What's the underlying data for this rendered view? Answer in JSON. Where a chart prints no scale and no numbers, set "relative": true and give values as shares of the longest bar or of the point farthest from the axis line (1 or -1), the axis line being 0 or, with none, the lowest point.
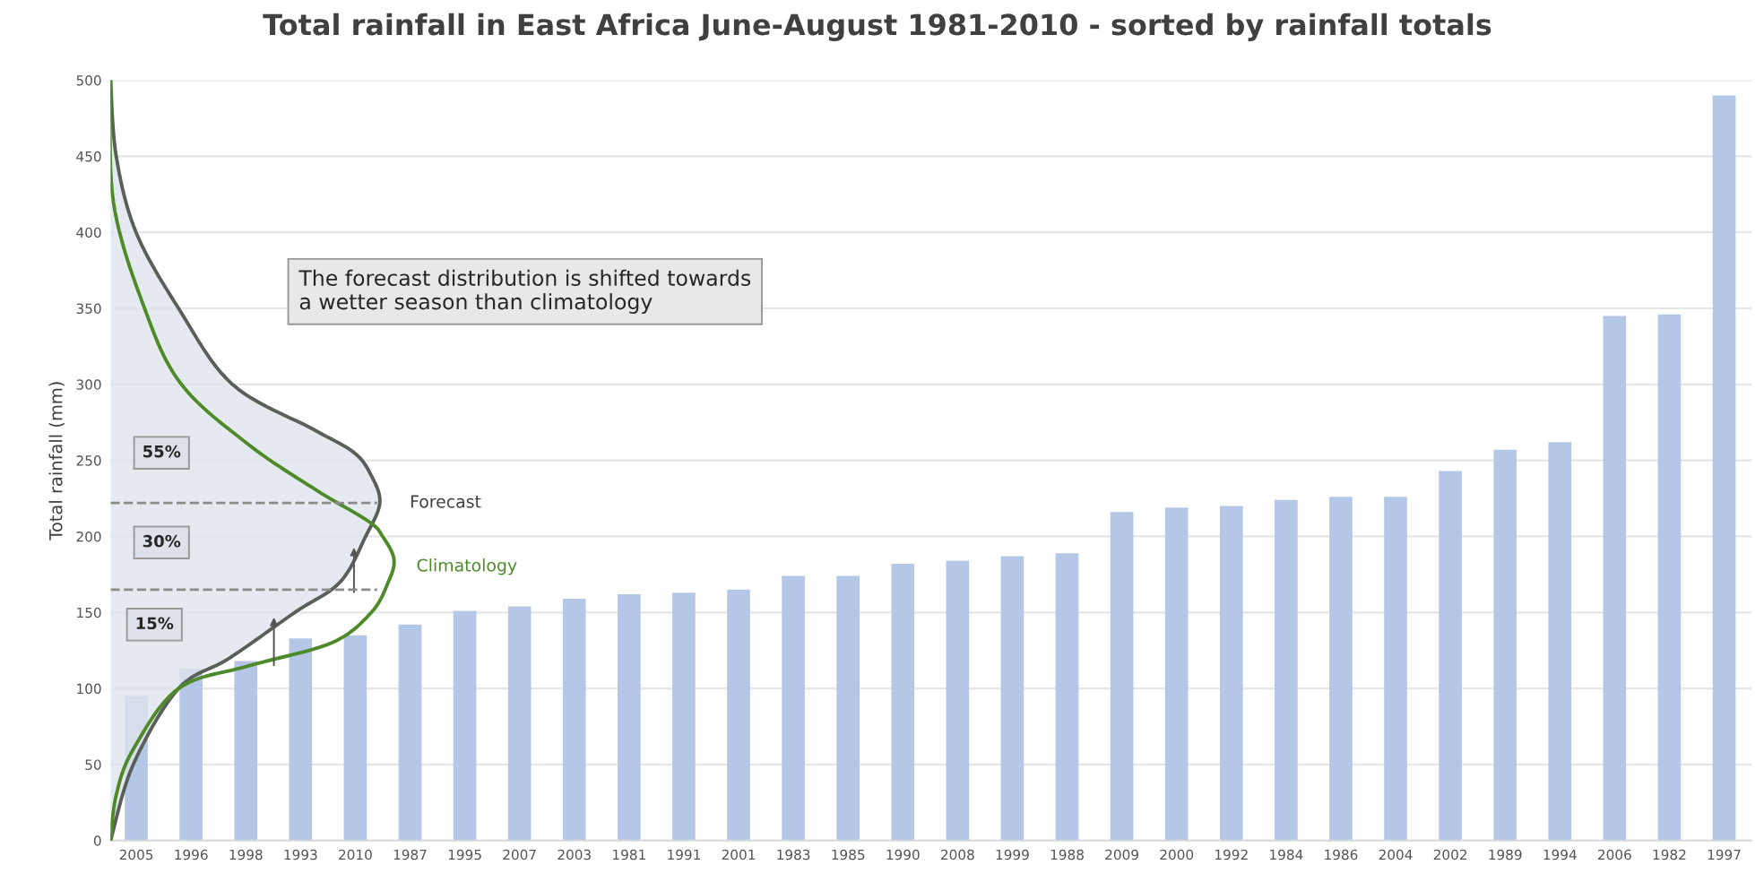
{
  "chart_data": [
    {
      "type": "bar",
      "title": "Total rainfall in East Africa June-August 1981-2010 - sorted by rainfall totals",
      "ylabel": "Total rainfall (mm)",
      "categories": [
        "2005",
        "1996",
        "1998",
        "1993",
        "2010",
        "1987",
        "1995",
        "2007",
        "2003",
        "1981",
        "1991",
        "2001",
        "1983",
        "1985",
        "1990",
        "2008",
        "1999",
        "1988",
        "2009",
        "2000",
        "1992",
        "1984",
        "1986",
        "2004",
        "2002",
        "1989",
        "1994",
        "2006",
        "1982",
        "1997"
      ],
      "values": [
        95,
        113,
        118,
        133,
        135,
        142,
        151,
        154,
        159,
        162,
        163,
        165,
        174,
        174,
        182,
        184,
        187,
        189,
        216,
        219,
        220,
        224,
        226,
        226,
        243,
        257,
        262,
        345,
        346,
        490
      ],
      "color": "#b4c7e7",
      "ylim": [
        0,
        500
      ],
      "yticks": [
        0,
        50,
        100,
        150,
        200,
        250,
        300,
        350,
        400,
        450,
        500
      ],
      "grid": "y",
      "ref_lines": [
        {
          "axis": "y",
          "value": 222,
          "color": "#8c8c8c",
          "line_style": "dashed"
        },
        {
          "axis": "y",
          "value": 165,
          "color": "#8c8c8c",
          "line_style": "dashed"
        }
      ],
      "annotations": [
        "The forecast distribution is shifted towards\na wetter season than climatology",
        "55%",
        "30%",
        "15%"
      ]
    },
    {
      "type": "line",
      "orientation": "horizontal",
      "relative": true,
      "ylim": [
        0,
        500
      ],
      "tick_labels": false,
      "series": [
        {
          "name": "Forecast",
          "color": "#5a5f5a",
          "x": [
            0,
            50,
            100,
            120,
            150,
            170,
            200,
            222,
            240,
            255,
            270,
            300,
            350,
            400,
            450,
            500
          ],
          "values": [
            0,
            0.08,
            0.24,
            0.42,
            0.65,
            0.81,
            0.9,
            0.95,
            0.92,
            0.86,
            0.72,
            0.43,
            0.24,
            0.09,
            0.02,
            0
          ]
        },
        {
          "name": "Climatology",
          "color": "#4e8a2a",
          "x": [
            0,
            30,
            60,
            100,
            115,
            130,
            150,
            170,
            185,
            200,
            210,
            230,
            260,
            300,
            350,
            420,
            500
          ],
          "values": [
            0,
            0.02,
            0.08,
            0.24,
            0.49,
            0.78,
            0.92,
            0.98,
            1,
            0.96,
            0.91,
            0.73,
            0.49,
            0.25,
            0.12,
            0.01,
            0
          ]
        }
      ]
    }
  ]
}
